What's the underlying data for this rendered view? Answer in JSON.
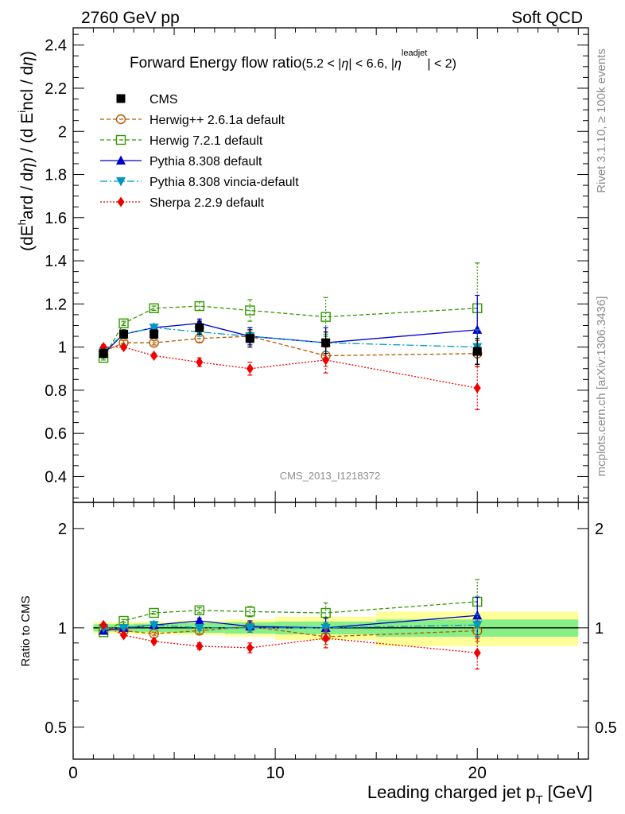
{
  "header": {
    "left": "2760 GeV pp",
    "right": "Soft QCD"
  },
  "title": {
    "main": "Forward Energy flow ratio",
    "cut_a": "(5.2 < |",
    "eta1": "η",
    "cut_b": "| < 6.6, |",
    "eta2": "η",
    "sup": "leadjet",
    "cut_c": "| < 2)"
  },
  "side_labels": {
    "rivet": "Rivet 3.1.10, ≥ 100k events",
    "mcplots": "mcplots.cern.ch [arXiv:1306.3436]"
  },
  "analysis_id": "CMS_2013_I1218372",
  "colors": {
    "cms": "#000000",
    "herwigpp": "#b35900",
    "herwig7": "#339900",
    "pythia": "#0000cc",
    "vincia": "#0099bb",
    "sherpa": "#ee0000",
    "band_inner": "#88ee88",
    "band_outer": "#ffff99"
  },
  "chart_data": [
    {
      "type": "line",
      "panel": "main",
      "ylabel_parts": [
        "(dE",
        "h",
        "ard / d",
        "η",
        ") / (d E",
        "i",
        "ncl / d",
        "η",
        ")"
      ],
      "xlim": [
        0,
        25.5
      ],
      "ylim": [
        0.28,
        2.48
      ],
      "yticks": [
        0.4,
        0.6,
        0.8,
        1,
        1.2,
        1.4,
        1.6,
        1.8,
        2,
        2.2,
        2.4
      ],
      "ytick_labels": [
        "0.4",
        "0.6",
        "0.8",
        "1",
        "1.2",
        "1.4",
        "1.6",
        "1.8",
        "2",
        "2.2",
        "2.4"
      ],
      "legend_position": "top-left",
      "x": [
        1.5,
        2.5,
        4,
        6.25,
        8.75,
        12.5,
        20
      ],
      "series": [
        {
          "name": "CMS",
          "key": "cms",
          "marker": "square-filled",
          "values": [
            0.97,
            1.06,
            1.06,
            1.09,
            1.04,
            1.02,
            0.98
          ],
          "errors": [
            0.02,
            0.02,
            0.02,
            0.03,
            0.04,
            0.05,
            0.06
          ]
        },
        {
          "name": "Herwig++ 2.6.1a default",
          "key": "herwigpp",
          "marker": "circle-open",
          "dash": "5,3",
          "values": [
            0.98,
            1.02,
            1.02,
            1.04,
            1.05,
            0.96,
            0.97
          ],
          "errors": [
            0.01,
            0.01,
            0.01,
            0.02,
            0.04,
            0.05,
            0.06
          ]
        },
        {
          "name": "Herwig 7.2.1 default",
          "key": "herwig7",
          "marker": "square-open",
          "dash": "5,3",
          "values": [
            0.95,
            1.11,
            1.18,
            1.19,
            1.17,
            1.14,
            1.18
          ],
          "errors": [
            0.01,
            0.01,
            0.01,
            0.02,
            0.05,
            0.09,
            0.21
          ]
        },
        {
          "name": "Pythia 8.308 default",
          "key": "pythia",
          "marker": "triangle-up",
          "dash": "",
          "values": [
            0.97,
            1.06,
            1.09,
            1.11,
            1.05,
            1.02,
            1.08
          ],
          "errors": [
            0.01,
            0.01,
            0.01,
            0.02,
            0.04,
            0.07,
            0.16
          ]
        },
        {
          "name": "Pythia 8.308 vincia-default",
          "key": "vincia",
          "marker": "triangle-down",
          "dash": "9,3,2,3",
          "values": [
            0.98,
            1.06,
            1.09,
            1.07,
            1.05,
            1.02,
            1.0
          ],
          "errors": [
            0.01,
            0.01,
            0.01,
            0.02,
            0.03,
            0.04,
            0.08
          ]
        },
        {
          "name": "Sherpa 2.2.9 default",
          "key": "sherpa",
          "marker": "diamond",
          "dash": "2,2",
          "values": [
            1.0,
            1.0,
            0.96,
            0.93,
            0.9,
            0.94,
            0.81
          ],
          "errors": [
            0.01,
            0.01,
            0.01,
            0.02,
            0.03,
            0.06,
            0.1
          ]
        }
      ]
    },
    {
      "type": "line",
      "panel": "ratio",
      "ylabel": "Ratio to CMS",
      "xlabel_main": "Leading charged jet p",
      "xlabel_sub": "T",
      "xlabel_unit": " [GeV]",
      "xlim": [
        0,
        25.5
      ],
      "ylim": [
        0.4,
        2.4
      ],
      "yscale": "log",
      "yticks": [
        0.5,
        1,
        2
      ],
      "ytick_labels": [
        "0.5",
        "1",
        "2"
      ],
      "xticks": [
        0,
        10,
        20
      ],
      "xtick_labels": [
        "0",
        "10",
        "20"
      ],
      "x": [
        1.5,
        2.5,
        4,
        6.25,
        8.75,
        12.5,
        20
      ],
      "band_inner": [
        0.025,
        0.025,
        0.03,
        0.035,
        0.04,
        0.045,
        0.06
      ],
      "band_outer": [
        0.04,
        0.04,
        0.045,
        0.05,
        0.06,
        0.08,
        0.12
      ],
      "series": [
        {
          "name": "Herwig++ 2.6.1a default",
          "key": "herwigpp",
          "marker": "circle-open",
          "dash": "5,3",
          "values": [
            1.0,
            0.98,
            0.96,
            0.98,
            1.01,
            0.94,
            0.98
          ],
          "errors": [
            0.01,
            0.01,
            0.01,
            0.02,
            0.04,
            0.05,
            0.07
          ]
        },
        {
          "name": "Herwig 7.2.1 default",
          "key": "herwig7",
          "marker": "square-open",
          "dash": "5,3",
          "values": [
            0.97,
            1.05,
            1.11,
            1.13,
            1.12,
            1.11,
            1.2
          ],
          "errors": [
            0.01,
            0.01,
            0.01,
            0.02,
            0.04,
            0.08,
            0.2
          ]
        },
        {
          "name": "Pythia 8.308 default",
          "key": "pythia",
          "marker": "triangle-up",
          "dash": "",
          "values": [
            0.98,
            1.0,
            1.02,
            1.05,
            1.01,
            1.0,
            1.09
          ],
          "errors": [
            0.01,
            0.01,
            0.01,
            0.02,
            0.04,
            0.07,
            0.15
          ]
        },
        {
          "name": "Pythia 8.308 vincia-default",
          "key": "vincia",
          "marker": "triangle-down",
          "dash": "9,3,2,3",
          "values": [
            1.0,
            1.0,
            1.02,
            1.0,
            1.0,
            1.0,
            1.02
          ],
          "errors": [
            0.01,
            0.01,
            0.01,
            0.02,
            0.03,
            0.04,
            0.08
          ]
        },
        {
          "name": "Sherpa 2.2.9 default",
          "key": "sherpa",
          "marker": "diamond",
          "dash": "2,2",
          "values": [
            1.02,
            0.95,
            0.91,
            0.88,
            0.87,
            0.93,
            0.84
          ],
          "errors": [
            0.01,
            0.01,
            0.01,
            0.02,
            0.03,
            0.06,
            0.09
          ]
        }
      ]
    }
  ]
}
